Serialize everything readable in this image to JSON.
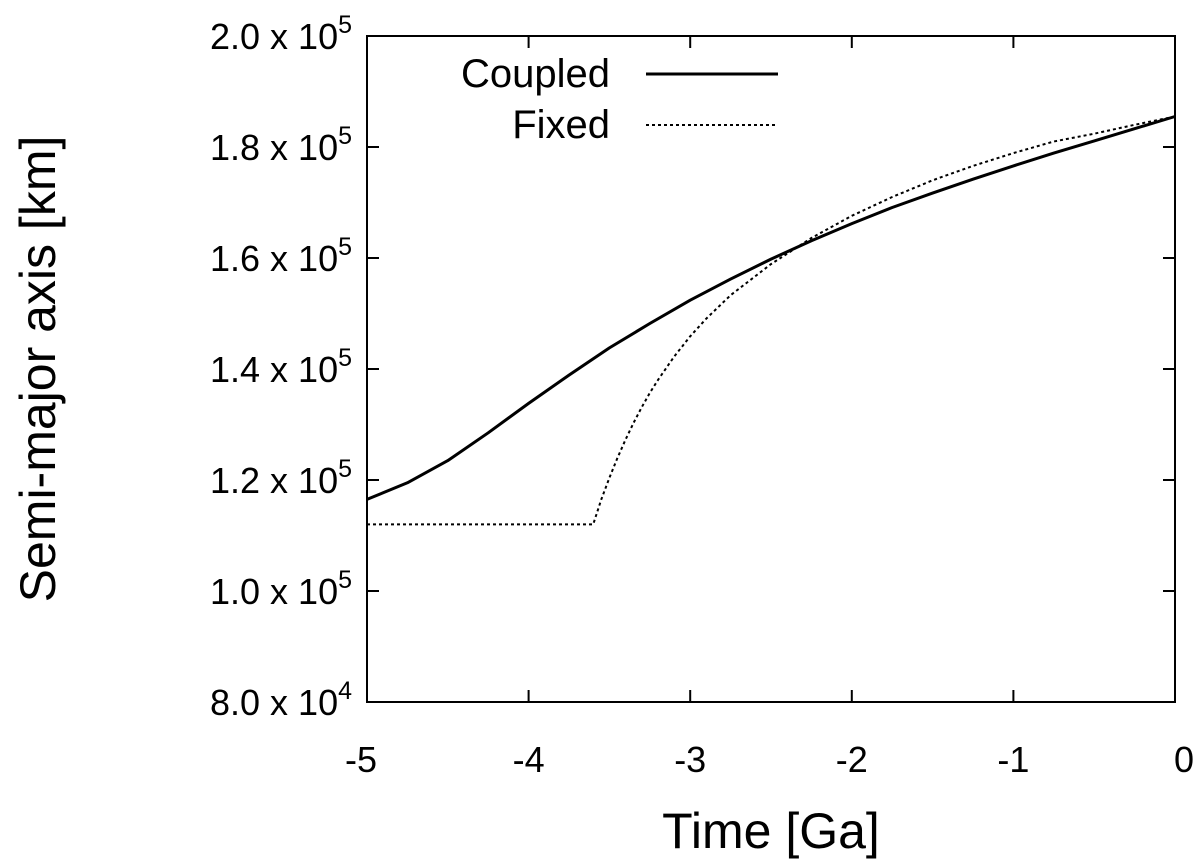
{
  "chart_data": {
    "type": "line",
    "xlabel": "Time [Ga]",
    "ylabel": "Semi-major axis [km]",
    "xlim": [
      -5,
      0
    ],
    "ylim": [
      80000,
      200000
    ],
    "x_ticks": [
      {
        "value": -5,
        "label": "-5"
      },
      {
        "value": -4,
        "label": "-4"
      },
      {
        "value": -3,
        "label": "-3"
      },
      {
        "value": -2,
        "label": "-2"
      },
      {
        "value": -1,
        "label": "-1"
      },
      {
        "value": 0,
        "label": "0"
      }
    ],
    "y_ticks": [
      {
        "value": 80000,
        "mantissa": "8.0 x 10",
        "exponent": "4"
      },
      {
        "value": 100000,
        "mantissa": "1.0 x 10",
        "exponent": "5"
      },
      {
        "value": 120000,
        "mantissa": "1.2 x 10",
        "exponent": "5"
      },
      {
        "value": 140000,
        "mantissa": "1.4 x 10",
        "exponent": "5"
      },
      {
        "value": 160000,
        "mantissa": "1.6 x 10",
        "exponent": "5"
      },
      {
        "value": 180000,
        "mantissa": "1.8 x 10",
        "exponent": "5"
      },
      {
        "value": 200000,
        "mantissa": "2.0 x 10",
        "exponent": "5"
      }
    ],
    "legend_position": "top-left",
    "grid": false,
    "series": [
      {
        "name": "Coupled",
        "style": "solid",
        "color": "#000000",
        "x": [
          -5.0,
          -4.75,
          -4.5,
          -4.25,
          -4.0,
          -3.75,
          -3.5,
          -3.25,
          -3.0,
          -2.75,
          -2.5,
          -2.25,
          -2.0,
          -1.75,
          -1.5,
          -1.25,
          -1.0,
          -0.75,
          -0.5,
          -0.25,
          0.0
        ],
        "y": [
          116500,
          119500,
          123500,
          128500,
          133800,
          138900,
          143800,
          148200,
          152400,
          156200,
          159800,
          163100,
          166200,
          169100,
          171700,
          174200,
          176600,
          178900,
          181100,
          183300,
          185500
        ]
      },
      {
        "name": "Fixed",
        "style": "dotted",
        "color": "#000000",
        "x": [
          -5.0,
          -4.5,
          -4.0,
          -3.6,
          -3.55,
          -3.5,
          -3.45,
          -3.4,
          -3.35,
          -3.3,
          -3.25,
          -3.2,
          -3.1,
          -3.0,
          -2.9,
          -2.75,
          -2.5,
          -2.25,
          -2.0,
          -1.75,
          -1.5,
          -1.25,
          -1.0,
          -0.75,
          -0.5,
          -0.25,
          0.0
        ],
        "y": [
          112000,
          112000,
          112000,
          112000,
          116500,
          120400,
          124000,
          127300,
          130300,
          133100,
          135700,
          138000,
          142200,
          145900,
          149100,
          153300,
          158900,
          163600,
          167600,
          171000,
          174000,
          176600,
          178900,
          181000,
          182400,
          184000,
          185500
        ]
      }
    ]
  }
}
